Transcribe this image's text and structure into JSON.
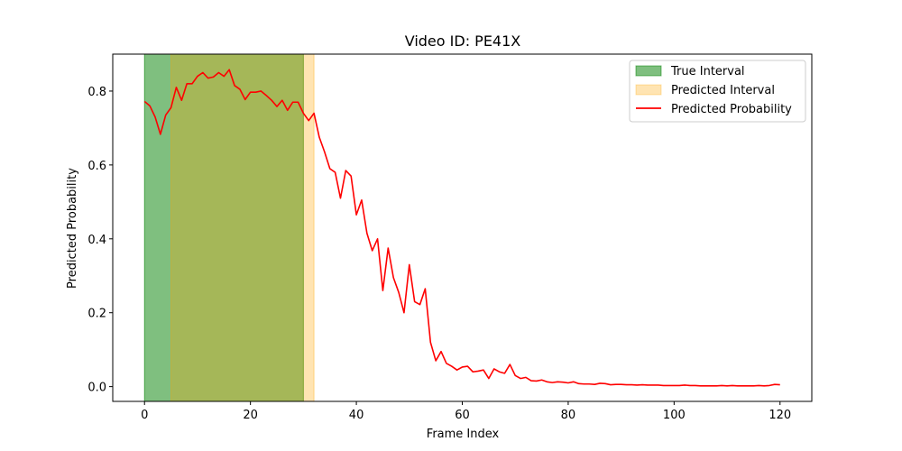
{
  "chart_data": {
    "type": "line",
    "title": "Video ID: PE41X",
    "xlabel": "Frame Index",
    "ylabel": "Predicted Probability",
    "xlim": [
      -6,
      126
    ],
    "ylim": [
      -0.04,
      0.9
    ],
    "xticks": [
      0,
      20,
      40,
      60,
      80,
      100,
      120
    ],
    "yticks": [
      0.0,
      0.2,
      0.4,
      0.6,
      0.8
    ],
    "grid": false,
    "legend_position": "top-right",
    "true_interval": {
      "label": "True Interval",
      "start": 0,
      "end": 30,
      "color": "#008000",
      "opacity": 0.5
    },
    "predicted_interval": {
      "label": "Predicted Interval",
      "start": 5,
      "end": 32,
      "color": "#ffa500",
      "opacity": 0.3
    },
    "series": [
      {
        "name": "Predicted Probability",
        "color": "#ff0000",
        "x": [
          0,
          1,
          2,
          3,
          4,
          5,
          6,
          7,
          8,
          9,
          10,
          11,
          12,
          13,
          14,
          15,
          16,
          17,
          18,
          19,
          20,
          21,
          22,
          23,
          24,
          25,
          26,
          27,
          28,
          29,
          30,
          31,
          32,
          33,
          34,
          35,
          36,
          37,
          38,
          39,
          40,
          41,
          42,
          43,
          44,
          45,
          46,
          47,
          48,
          49,
          50,
          51,
          52,
          53,
          54,
          55,
          56,
          57,
          58,
          59,
          60,
          61,
          62,
          63,
          64,
          65,
          66,
          67,
          68,
          69,
          70,
          71,
          72,
          73,
          74,
          75,
          76,
          77,
          78,
          79,
          80,
          81,
          82,
          83,
          84,
          85,
          86,
          87,
          88,
          89,
          90,
          91,
          92,
          93,
          94,
          95,
          96,
          97,
          98,
          99,
          100,
          101,
          102,
          103,
          104,
          105,
          106,
          107,
          108,
          109,
          110,
          111,
          112,
          113,
          114,
          115,
          116,
          117,
          118,
          119,
          120
        ],
        "y": [
          0.772,
          0.76,
          0.73,
          0.683,
          0.735,
          0.755,
          0.81,
          0.775,
          0.82,
          0.82,
          0.84,
          0.85,
          0.835,
          0.838,
          0.85,
          0.84,
          0.858,
          0.815,
          0.805,
          0.777,
          0.797,
          0.797,
          0.8,
          0.788,
          0.775,
          0.758,
          0.775,
          0.748,
          0.77,
          0.77,
          0.74,
          0.72,
          0.74,
          0.675,
          0.635,
          0.59,
          0.58,
          0.51,
          0.585,
          0.57,
          0.465,
          0.505,
          0.415,
          0.368,
          0.4,
          0.26,
          0.375,
          0.295,
          0.255,
          0.2,
          0.33,
          0.23,
          0.222,
          0.265,
          0.12,
          0.07,
          0.095,
          0.063,
          0.055,
          0.045,
          0.053,
          0.055,
          0.04,
          0.042,
          0.045,
          0.022,
          0.048,
          0.04,
          0.036,
          0.06,
          0.03,
          0.022,
          0.025,
          0.016,
          0.015,
          0.018,
          0.013,
          0.011,
          0.013,
          0.012,
          0.01,
          0.013,
          0.008,
          0.007,
          0.007,
          0.006,
          0.009,
          0.008,
          0.005,
          0.006,
          0.006,
          0.005,
          0.005,
          0.004,
          0.005,
          0.004,
          0.004,
          0.004,
          0.003,
          0.003,
          0.003,
          0.003,
          0.004,
          0.003,
          0.003,
          0.002,
          0.002,
          0.002,
          0.002,
          0.003,
          0.002,
          0.003,
          0.002,
          0.002,
          0.002,
          0.002,
          0.003,
          0.002,
          0.003,
          0.006,
          0.005
        ]
      }
    ]
  }
}
